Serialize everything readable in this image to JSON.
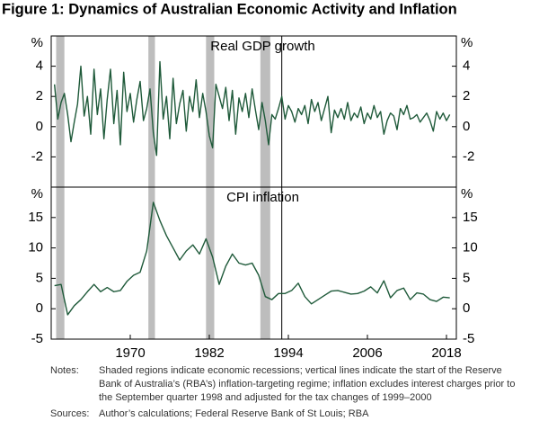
{
  "title": "Figure 1: Dynamics of Australian Economic Activity and Inflation",
  "chart_data": [
    {
      "type": "line",
      "title": "Real GDP growth",
      "y_label": "%",
      "xlim": [
        1958,
        2019.5
      ],
      "ylim": [
        -4,
        6
      ],
      "yticks": [
        -2,
        0,
        2,
        4
      ],
      "recessions": [
        [
          1958.75,
          1960
        ],
        [
          1972.75,
          1973.75
        ],
        [
          1981.5,
          1982.75
        ],
        [
          1989.75,
          1991.25
        ]
      ],
      "inflation_target_start": 1993,
      "series": [
        {
          "color": "#1f5a3a",
          "x": [
            1958.5,
            1959,
            1959.5,
            1960,
            1960.5,
            1961,
            1961.5,
            1962,
            1962.5,
            1963,
            1963.5,
            1964,
            1964.5,
            1965,
            1965.5,
            1966,
            1966.5,
            1967,
            1967.5,
            1968,
            1968.5,
            1969,
            1969.5,
            1970,
            1970.5,
            1971,
            1971.5,
            1972,
            1972.5,
            1973,
            1973.5,
            1974,
            1974.5,
            1975,
            1975.5,
            1976,
            1976.5,
            1977,
            1977.5,
            1978,
            1978.5,
            1979,
            1979.5,
            1980,
            1980.5,
            1981,
            1981.5,
            1982,
            1982.5,
            1983,
            1983.5,
            1984,
            1984.5,
            1985,
            1985.5,
            1986,
            1986.5,
            1987,
            1987.5,
            1988,
            1988.5,
            1989,
            1989.5,
            1990,
            1990.5,
            1991,
            1991.5,
            1992,
            1992.5,
            1993,
            1993.5,
            1994,
            1994.5,
            1995,
            1995.5,
            1996,
            1996.5,
            1997,
            1997.5,
            1998,
            1998.5,
            1999,
            1999.5,
            2000,
            2000.5,
            2001,
            2001.5,
            2002,
            2002.5,
            2003,
            2003.5,
            2004,
            2004.5,
            2005,
            2005.5,
            2006,
            2006.5,
            2007,
            2007.5,
            2008,
            2008.5,
            2009,
            2009.5,
            2010,
            2010.5,
            2011,
            2011.5,
            2012,
            2012.5,
            2013,
            2013.5,
            2014,
            2014.5,
            2015,
            2015.5,
            2016,
            2016.5,
            2017,
            2017.5,
            2018,
            2018.5
          ],
          "values": [
            2.8,
            0.5,
            1.6,
            2.2,
            0.8,
            -1.0,
            0.3,
            1.5,
            4.0,
            0.7,
            2.0,
            -0.5,
            3.8,
            0.8,
            2.5,
            -0.8,
            1.8,
            3.8,
            0.2,
            2.4,
            -1.2,
            3.6,
            1.0,
            2.2,
            0.3,
            1.8,
            3.0,
            0.4,
            1.2,
            2.5,
            -0.4,
            -1.9,
            4.3,
            0.5,
            2.0,
            -0.8,
            3.2,
            0.2,
            1.5,
            2.4,
            -0.3,
            2.0,
            1.0,
            3.1,
            0.6,
            2.2,
            1.0,
            -0.6,
            -1.4,
            2.8,
            2.0,
            1.2,
            2.6,
            0.4,
            2.4,
            -0.5,
            1.9,
            1.0,
            2.2,
            0.6,
            2.5,
            1.1,
            -0.2,
            1.6,
            0.4,
            -1.2,
            0.8,
            0.5,
            1.2,
            2.0,
            0.5,
            1.4,
            1.0,
            0.3,
            1.2,
            0.8,
            1.4,
            0.2,
            1.8,
            1.0,
            1.6,
            0.4,
            1.2,
            2.0,
            -0.4,
            1.1,
            0.6,
            1.2,
            0.5,
            1.6,
            0.4,
            0.9,
            0.6,
            1.3,
            0.2,
            0.9,
            0.5,
            1.4,
            0.6,
            1.0,
            -0.5,
            0.4,
            0.9,
            0.7,
            -0.2,
            1.2,
            0.8,
            1.4,
            0.5,
            0.6,
            0.8,
            0.3,
            0.6,
            0.9,
            0.4,
            -0.3,
            1.0,
            0.5,
            0.9,
            0.4,
            0.8
          ]
        }
      ]
    },
    {
      "type": "line",
      "title": "CPI inflation",
      "y_label": "%",
      "xlim": [
        1958,
        2019.5
      ],
      "ylim": [
        -5,
        20
      ],
      "yticks": [
        -5,
        0,
        5,
        10,
        15
      ],
      "xticks": [
        1970,
        1982,
        1994,
        2006,
        2018
      ],
      "recessions": [
        [
          1958.75,
          1960
        ],
        [
          1972.75,
          1973.75
        ],
        [
          1981.5,
          1982.75
        ],
        [
          1989.75,
          1991.25
        ]
      ],
      "inflation_target_start": 1993,
      "series": [
        {
          "color": "#1f5a3a",
          "x": [
            1958.5,
            1959.5,
            1960.5,
            1961.5,
            1962.5,
            1963.5,
            1964.5,
            1965.5,
            1966.5,
            1967.5,
            1968.5,
            1969.5,
            1970.5,
            1971.5,
            1972.5,
            1973.5,
            1974.5,
            1975.5,
            1976.5,
            1977.5,
            1978.5,
            1979.5,
            1980.5,
            1981.5,
            1982.5,
            1983.5,
            1984.5,
            1985.5,
            1986.5,
            1987.5,
            1988.5,
            1989.5,
            1990.5,
            1991.5,
            1992.5,
            1993.5,
            1994.5,
            1995.5,
            1996.5,
            1997.5,
            1998.5,
            1999.5,
            2000.5,
            2001.5,
            2002.5,
            2003.5,
            2004.5,
            2005.5,
            2006.5,
            2007.5,
            2008.5,
            2009.5,
            2010.5,
            2011.5,
            2012.5,
            2013.5,
            2014.5,
            2015.5,
            2016.5,
            2017.5,
            2018.5
          ],
          "values": [
            3.8,
            4.0,
            -1.0,
            0.5,
            1.5,
            2.8,
            4.0,
            2.8,
            3.5,
            2.8,
            3.0,
            4.5,
            5.5,
            6.0,
            9.5,
            17.5,
            14.5,
            12.0,
            10.0,
            8.0,
            9.5,
            10.5,
            9.0,
            11.5,
            8.5,
            4.0,
            7.0,
            9.0,
            7.5,
            7.2,
            7.5,
            5.5,
            2.0,
            1.5,
            2.5,
            2.5,
            3.0,
            4.2,
            2.0,
            0.8,
            1.5,
            2.2,
            2.9,
            3.0,
            2.7,
            2.4,
            2.5,
            2.9,
            3.6,
            2.6,
            4.6,
            1.8,
            3.0,
            3.4,
            1.5,
            2.6,
            2.4,
            1.5,
            1.2,
            1.9,
            1.8
          ]
        }
      ]
    }
  ],
  "notes": {
    "label": "Notes:",
    "lines": [
      "Shaded regions indicate economic recessions; vertical lines indicate the start of the Reserve",
      "Bank of Australia’s (RBA’s) inflation-targeting regime; inflation excludes interest charges prior to",
      "the September quarter 1998 and adjusted for the tax changes of 1999–2000"
    ]
  },
  "sources": {
    "label": "Sources:",
    "text": "Author’s calculations; Federal Reserve Bank of St Louis; RBA"
  }
}
